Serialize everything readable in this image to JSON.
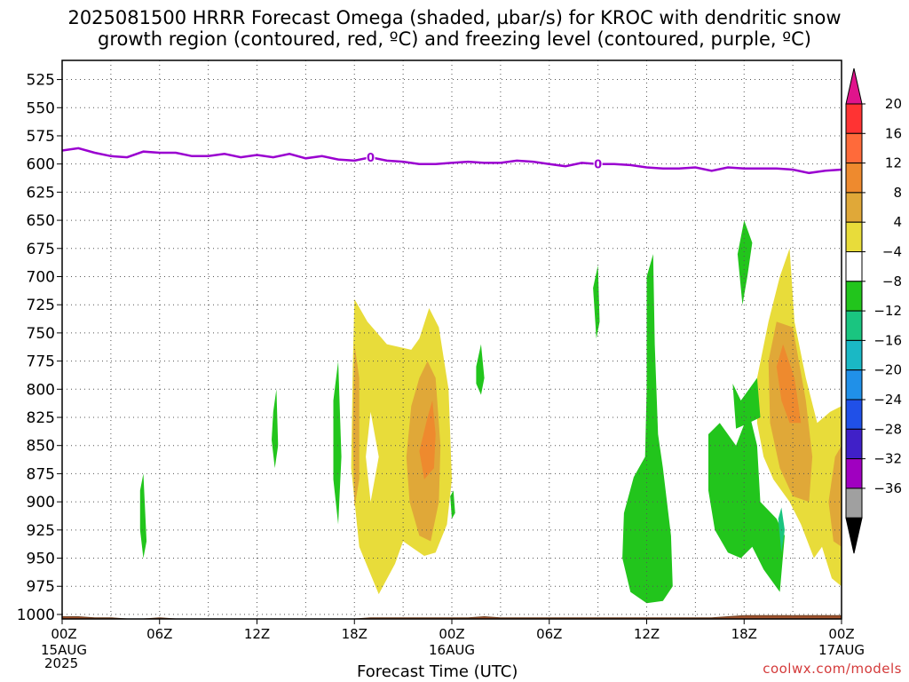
{
  "title_line1": "2025081500 HRRR Forecast Omega (shaded, µbar/s) for KROC with dendritic snow",
  "title_line2": "growth region (contoured, red, ºC) and freezing level (contoured, purple, ºC)",
  "credit": "coolwx.com/models",
  "colors": {
    "freezing_line": "#9a00d0",
    "ground": "#a0522d",
    "grid": "#555555"
  },
  "chart_data": {
    "type": "heatmap",
    "xlabel": "Forecast Time (UTC)",
    "year_label": "2025",
    "x_ticks": [
      {
        "hour": 0,
        "label": "00Z",
        "date": "15AUG"
      },
      {
        "hour": 6,
        "label": "06Z",
        "date": ""
      },
      {
        "hour": 12,
        "label": "12Z",
        "date": ""
      },
      {
        "hour": 18,
        "label": "18Z",
        "date": ""
      },
      {
        "hour": 24,
        "label": "00Z",
        "date": "16AUG"
      },
      {
        "hour": 30,
        "label": "06Z",
        "date": ""
      },
      {
        "hour": 36,
        "label": "12Z",
        "date": ""
      },
      {
        "hour": 42,
        "label": "18Z",
        "date": ""
      },
      {
        "hour": 48,
        "label": "00Z",
        "date": "17AUG"
      }
    ],
    "xlim": [
      0,
      48
    ],
    "ylim": [
      508,
      1004
    ],
    "y_ticks": [
      525,
      550,
      575,
      600,
      625,
      650,
      675,
      700,
      725,
      750,
      775,
      800,
      825,
      850,
      875,
      900,
      925,
      950,
      975,
      1000
    ],
    "colorbar": {
      "labels": [
        "20",
        "16",
        "12",
        "8",
        "4",
        "−4",
        "−8",
        "−12",
        "−16",
        "−20",
        "−24",
        "−28",
        "−32",
        "−36"
      ],
      "colors": [
        "#ff3333",
        "#ff6a3a",
        "#ee8a2e",
        "#e0a838",
        "#e8dc3a",
        "#ffffff",
        "#22c51c",
        "#1ac580",
        "#1ab8c5",
        "#2090e8",
        "#2050e8",
        "#4020c8",
        "#a000c0",
        "#a0a0a0"
      ],
      "top_arrow_color": "#e0148c",
      "bottom_arrow_color": "#000000"
    },
    "freezing_level": {
      "label": "0",
      "label_hours": [
        19,
        33
      ],
      "hours": [
        0,
        1,
        2,
        3,
        4,
        5,
        6,
        7,
        8,
        9,
        10,
        11,
        12,
        13,
        14,
        15,
        16,
        17,
        18,
        19,
        20,
        21,
        22,
        23,
        24,
        25,
        26,
        27,
        28,
        29,
        30,
        31,
        32,
        33,
        34,
        35,
        36,
        37,
        38,
        39,
        40,
        41,
        42,
        43,
        44,
        45,
        46,
        47,
        48
      ],
      "pressure": [
        588,
        586,
        590,
        593,
        594,
        589,
        590,
        590,
        593,
        593,
        591,
        594,
        592,
        594,
        591,
        595,
        593,
        596,
        597,
        594,
        597,
        598,
        600,
        600,
        599,
        598,
        599,
        599,
        597,
        598,
        600,
        602,
        599,
        600,
        600,
        601,
        603,
        604,
        604,
        603,
        606,
        603,
        604,
        604,
        604,
        605,
        608,
        606,
        605
      ]
    },
    "omega_regions": [
      {
        "level": "4",
        "points": [
          [
            18.0,
            720
          ],
          [
            18.8,
            740
          ],
          [
            20.0,
            760
          ],
          [
            21.5,
            765
          ],
          [
            22.0,
            755
          ],
          [
            22.6,
            728
          ],
          [
            23.2,
            745
          ],
          [
            23.8,
            800
          ],
          [
            24.0,
            880
          ],
          [
            23.7,
            920
          ],
          [
            23.0,
            945
          ],
          [
            22.3,
            948
          ],
          [
            21.0,
            935
          ],
          [
            20.5,
            955
          ],
          [
            19.5,
            982
          ],
          [
            18.3,
            940
          ],
          [
            17.8,
            870
          ],
          [
            17.9,
            780
          ]
        ]
      },
      {
        "level": "8",
        "points": [
          [
            18.0,
            760
          ],
          [
            18.3,
            790
          ],
          [
            18.3,
            880
          ],
          [
            18.0,
            905
          ],
          [
            17.9,
            840
          ]
        ]
      },
      {
        "level": "8",
        "points": [
          [
            21.5,
            815
          ],
          [
            22.0,
            790
          ],
          [
            22.5,
            775
          ],
          [
            23.0,
            790
          ],
          [
            23.3,
            850
          ],
          [
            23.2,
            900
          ],
          [
            22.7,
            935
          ],
          [
            22.0,
            930
          ],
          [
            21.4,
            900
          ],
          [
            21.2,
            860
          ]
        ]
      },
      {
        "level": "12",
        "points": [
          [
            22.0,
            855
          ],
          [
            22.5,
            825
          ],
          [
            22.8,
            810
          ],
          [
            23.0,
            840
          ],
          [
            22.9,
            870
          ],
          [
            22.3,
            880
          ]
        ]
      },
      {
        "level": "-4",
        "points": [
          [
            19.0,
            820
          ],
          [
            19.5,
            860
          ],
          [
            19.0,
            900
          ],
          [
            18.7,
            860
          ]
        ]
      },
      {
        "level": "4",
        "points": [
          [
            42.8,
            790
          ],
          [
            43.5,
            740
          ],
          [
            44.2,
            700
          ],
          [
            44.8,
            675
          ],
          [
            45.1,
            740
          ],
          [
            45.8,
            790
          ],
          [
            46.5,
            830
          ],
          [
            47.3,
            820
          ],
          [
            48.0,
            815
          ],
          [
            48.0,
            975
          ],
          [
            47.4,
            968
          ],
          [
            46.8,
            940
          ],
          [
            46.3,
            950
          ],
          [
            45.5,
            920
          ],
          [
            44.8,
            900
          ],
          [
            43.8,
            880
          ],
          [
            43.2,
            860
          ],
          [
            42.8,
            830
          ]
        ]
      },
      {
        "level": "8",
        "points": [
          [
            43.5,
            775
          ],
          [
            44.0,
            740
          ],
          [
            45.0,
            745
          ],
          [
            45.8,
            810
          ],
          [
            46.2,
            860
          ],
          [
            46.0,
            900
          ],
          [
            45.0,
            895
          ],
          [
            44.2,
            870
          ],
          [
            43.6,
            830
          ]
        ]
      },
      {
        "level": "12",
        "points": [
          [
            44.0,
            780
          ],
          [
            44.4,
            760
          ],
          [
            45.1,
            790
          ],
          [
            45.5,
            830
          ],
          [
            44.8,
            830
          ],
          [
            44.3,
            810
          ]
        ]
      },
      {
        "level": "8",
        "points": [
          [
            47.2,
            900
          ],
          [
            47.6,
            860
          ],
          [
            48.0,
            850
          ],
          [
            48.0,
            940
          ],
          [
            47.5,
            935
          ]
        ]
      },
      {
        "level": "-8",
        "points": [
          [
            32.7,
            710
          ],
          [
            33.0,
            690
          ],
          [
            33.1,
            740
          ],
          [
            32.9,
            755
          ]
        ]
      },
      {
        "level": "-8",
        "points": [
          [
            36.0,
            700
          ],
          [
            36.4,
            680
          ],
          [
            36.5,
            760
          ],
          [
            36.7,
            840
          ],
          [
            37.0,
            870
          ],
          [
            37.5,
            930
          ],
          [
            37.6,
            975
          ],
          [
            37.0,
            988
          ],
          [
            36.0,
            990
          ],
          [
            35.0,
            980
          ],
          [
            34.5,
            950
          ],
          [
            34.6,
            910
          ],
          [
            35.2,
            878
          ],
          [
            35.9,
            860
          ],
          [
            36.0,
            800
          ]
        ]
      },
      {
        "level": "-8",
        "points": [
          [
            39.8,
            840
          ],
          [
            40.5,
            830
          ],
          [
            41.5,
            850
          ],
          [
            42.3,
            820
          ],
          [
            42.8,
            850
          ],
          [
            43.0,
            900
          ],
          [
            44.0,
            915
          ],
          [
            44.5,
            930
          ],
          [
            44.2,
            980
          ],
          [
            43.2,
            960
          ],
          [
            42.5,
            940
          ],
          [
            41.8,
            950
          ],
          [
            41.0,
            945
          ],
          [
            40.2,
            925
          ],
          [
            39.8,
            890
          ]
        ]
      },
      {
        "level": "-8",
        "points": [
          [
            41.3,
            795
          ],
          [
            41.8,
            810
          ],
          [
            42.8,
            790
          ],
          [
            43.0,
            825
          ],
          [
            42.3,
            830
          ],
          [
            41.5,
            835
          ]
        ]
      },
      {
        "level": "-8",
        "points": [
          [
            41.6,
            680
          ],
          [
            42.0,
            650
          ],
          [
            42.5,
            670
          ],
          [
            42.2,
            700
          ],
          [
            41.9,
            725
          ]
        ]
      },
      {
        "level": "-8",
        "points": [
          [
            4.8,
            890
          ],
          [
            5.0,
            875
          ],
          [
            5.2,
            935
          ],
          [
            5.0,
            950
          ],
          [
            4.8,
            925
          ]
        ]
      },
      {
        "level": "-8",
        "points": [
          [
            13.0,
            820
          ],
          [
            13.2,
            800
          ],
          [
            13.3,
            850
          ],
          [
            13.1,
            870
          ],
          [
            12.9,
            845
          ]
        ]
      },
      {
        "level": "-8",
        "points": [
          [
            16.7,
            810
          ],
          [
            17.0,
            775
          ],
          [
            17.2,
            860
          ],
          [
            17.0,
            920
          ],
          [
            16.7,
            880
          ]
        ]
      },
      {
        "level": "-8",
        "points": [
          [
            25.5,
            780
          ],
          [
            25.8,
            760
          ],
          [
            26.0,
            790
          ],
          [
            25.8,
            805
          ],
          [
            25.5,
            795
          ]
        ]
      },
      {
        "level": "-8",
        "points": [
          [
            23.9,
            895
          ],
          [
            24.1,
            890
          ],
          [
            24.2,
            910
          ],
          [
            24.0,
            915
          ]
        ]
      },
      {
        "level": "-12",
        "points": [
          [
            44.1,
            915
          ],
          [
            44.3,
            905
          ],
          [
            44.5,
            925
          ],
          [
            44.3,
            945
          ]
        ]
      }
    ],
    "ground_pressure": [
      1002,
      1002,
      1003,
      1003,
      1004,
      1004,
      1003,
      1004,
      1004,
      1004,
      1004,
      1004,
      1004,
      1004,
      1004,
      1004,
      1004,
      1004,
      1004,
      1003,
      1003,
      1003,
      1003,
      1003,
      1003,
      1003,
      1002,
      1003,
      1003,
      1003,
      1003,
      1003,
      1003,
      1003,
      1003,
      1003,
      1003,
      1003,
      1003,
      1003,
      1003,
      1002,
      1001,
      1001,
      1001,
      1001,
      1001,
      1001,
      1001
    ]
  }
}
